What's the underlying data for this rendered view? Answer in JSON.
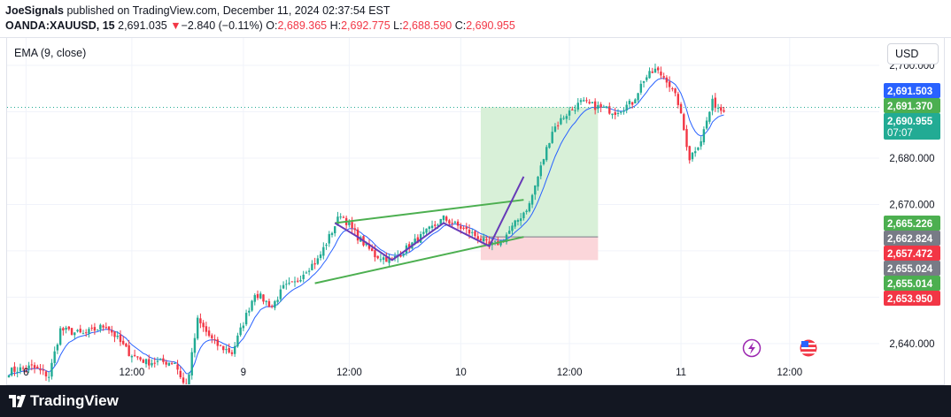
{
  "header": {
    "author": "JoeSignals",
    "published_text": "published on TradingView.com, December 11, 2024 02:37:54 EST",
    "symbol": "OANDA:XAUUSD, 15",
    "last": "2,691.035",
    "change_arrow": "▼",
    "change": "−2.840 (−0.11%)",
    "o_label": "O:",
    "o_value": "2,689.365",
    "h_label": "H:",
    "h_value": "2,692.775",
    "l_label": "L:",
    "l_value": "2,688.590",
    "c_label": "C:",
    "c_value": "2,690.955"
  },
  "indicator_label": "EMA (9, close)",
  "currency_button": "USD",
  "footer": {
    "logo_icon": "tradingview-logo-icon",
    "brand": "TradingView"
  },
  "colors": {
    "up": "#22ab94",
    "down": "#f23645",
    "ema": "#2962ff",
    "trendline": "#4caf50",
    "pattern": "#673ab7",
    "target_zone": "#d8f0d8",
    "stop_zone": "#fbd6da"
  },
  "chart_data": {
    "type": "candlestick",
    "title": "OANDA:XAUUSD, 15",
    "y_ticks": [
      2700,
      2690,
      2680,
      2670,
      2660,
      2650,
      2640
    ],
    "y_tick_labels": [
      "2,700.000",
      "2,690.000",
      "2,680.000",
      "2,670.000",
      "2,660.000",
      "2,650.000",
      "2,640.000"
    ],
    "x_tick_labels": [
      "6",
      "12:00",
      "9",
      "12:00",
      "10",
      "12:00",
      "11",
      "12:00"
    ],
    "ylim": [
      2633.5,
      2704
    ],
    "price_tags": [
      {
        "value": 2691.503,
        "text": "2,691.503",
        "color": "#2962ff"
      },
      {
        "value": 2691.37,
        "text": "2,691.370",
        "color": "#4caf50"
      },
      {
        "value": 2690.955,
        "text": "2,690.955",
        "sub": "07:07",
        "color": "#22ab94"
      },
      {
        "value": 2665.226,
        "text": "2,665.226",
        "color": "#4caf50"
      },
      {
        "value": 2662.824,
        "text": "2,662.824",
        "color": "#787b86"
      },
      {
        "value": 2657.472,
        "text": "2,657.472",
        "color": "#f23645"
      },
      {
        "value": 2655.024,
        "text": "2,655.024",
        "color": "#787b86"
      },
      {
        "value": 2655.014,
        "text": "2,655.014",
        "color": "#4caf50"
      },
      {
        "value": 2653.95,
        "text": "2,653.950",
        "color": "#f23645"
      }
    ],
    "last_price": 2690.955,
    "waypoints": [
      [
        0,
        2634
      ],
      [
        8,
        2635
      ],
      [
        14,
        2633
      ],
      [
        18,
        2643
      ],
      [
        26,
        2642
      ],
      [
        34,
        2644
      ],
      [
        42,
        2638
      ],
      [
        48,
        2636
      ],
      [
        55,
        2636
      ],
      [
        58,
        2636
      ],
      [
        62,
        2630
      ],
      [
        66,
        2645
      ],
      [
        72,
        2640
      ],
      [
        78,
        2638
      ],
      [
        86,
        2651
      ],
      [
        92,
        2648
      ],
      [
        96,
        2652
      ],
      [
        100,
        2653
      ],
      [
        104,
        2656
      ],
      [
        108,
        2658
      ],
      [
        112,
        2663
      ],
      [
        116,
        2668
      ],
      [
        122,
        2663
      ],
      [
        128,
        2659
      ],
      [
        134,
        2658
      ],
      [
        140,
        2661
      ],
      [
        146,
        2664
      ],
      [
        152,
        2667
      ],
      [
        158,
        2665
      ],
      [
        164,
        2663
      ],
      [
        168,
        2661
      ],
      [
        172,
        2662
      ],
      [
        176,
        2665
      ],
      [
        182,
        2670
      ],
      [
        186,
        2678
      ],
      [
        190,
        2686
      ],
      [
        194,
        2689
      ],
      [
        200,
        2692
      ],
      [
        206,
        2691
      ],
      [
        212,
        2690
      ],
      [
        218,
        2692
      ],
      [
        222,
        2697
      ],
      [
        226,
        2699
      ],
      [
        230,
        2697
      ],
      [
        234,
        2692
      ],
      [
        238,
        2680
      ],
      [
        242,
        2684
      ],
      [
        246,
        2692
      ],
      [
        250,
        2690
      ]
    ],
    "overlays": {
      "pattern_zigzag": [
        [
          114,
          2666
        ],
        [
          122,
          2663
        ],
        [
          134,
          2658
        ],
        [
          152,
          2666
        ],
        [
          168,
          2661
        ],
        [
          180,
          2676
        ]
      ],
      "upper_trendline": [
        [
          114,
          2666
        ],
        [
          180,
          2671
        ]
      ],
      "lower_trendline": [
        [
          107,
          2653
        ],
        [
          180,
          2663
        ]
      ],
      "target_zone": {
        "from": 165,
        "to": 206,
        "top": 2691,
        "bottom": 2663
      },
      "stop_zone": {
        "from": 165,
        "to": 206,
        "top": 2663,
        "bottom": 2658
      }
    }
  }
}
